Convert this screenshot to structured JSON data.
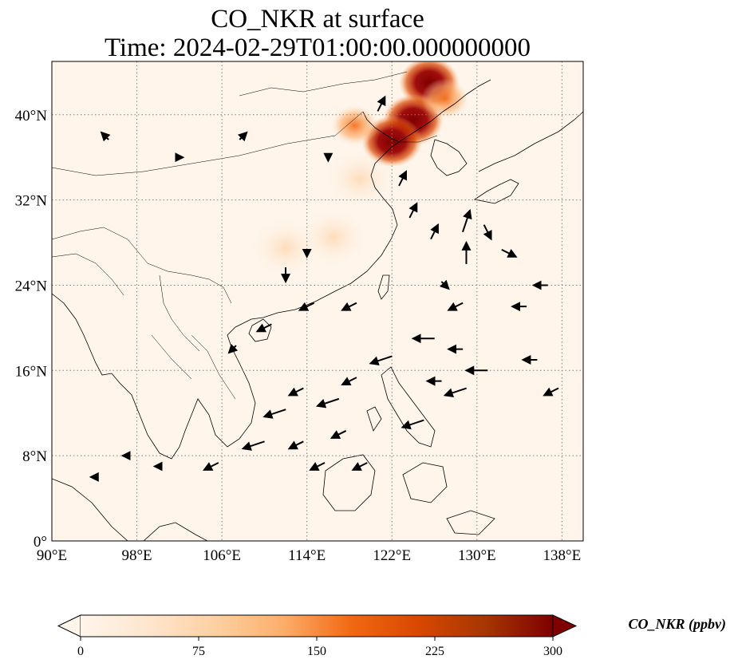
{
  "title": {
    "line1": "CO_NKR at surface",
    "line2": "Time: 2024-02-29T01:00:00.000000000"
  },
  "map": {
    "lon_range": [
      90,
      140
    ],
    "lat_range": [
      0,
      45
    ],
    "x_ticks": [
      {
        "value": 90,
        "label": "90°E"
      },
      {
        "value": 98,
        "label": "98°E"
      },
      {
        "value": 106,
        "label": "106°E"
      },
      {
        "value": 114,
        "label": "114°E"
      },
      {
        "value": 122,
        "label": "122°E"
      },
      {
        "value": 130,
        "label": "130°E"
      },
      {
        "value": 138,
        "label": "138°E"
      }
    ],
    "y_ticks": [
      {
        "value": 0,
        "label": "0°"
      },
      {
        "value": 8,
        "label": "8°N"
      },
      {
        "value": 16,
        "label": "16°N"
      },
      {
        "value": 24,
        "label": "24°N"
      },
      {
        "value": 32,
        "label": "32°N"
      },
      {
        "value": 40,
        "label": "40°N"
      }
    ],
    "gridlines": true,
    "background_color": "#fff5eb",
    "coastline_color": "#000000"
  },
  "colorbar": {
    "label": "CO_NKR (ppbv)",
    "min": 0,
    "max": 300,
    "extend": "both",
    "ticks": [
      "0",
      "75",
      "150",
      "225",
      "300"
    ],
    "colormap": "OrRd",
    "stops": [
      "#fff5eb",
      "#fee6ce",
      "#fdd0a2",
      "#fdae6b",
      "#f16913",
      "#d94801",
      "#a63603",
      "#7f0000"
    ]
  },
  "chart_data": {
    "type": "heatmap",
    "variable": "CO_NKR",
    "units": "ppbv",
    "hotspots": [
      {
        "lon": 125.5,
        "lat": 43.0,
        "value": 300
      },
      {
        "lon": 124.0,
        "lat": 39.5,
        "value": 290
      },
      {
        "lon": 122.0,
        "lat": 37.5,
        "value": 250
      },
      {
        "lon": 127.0,
        "lat": 41.5,
        "value": 180
      },
      {
        "lon": 118.5,
        "lat": 39.0,
        "value": 90
      },
      {
        "lon": 119.0,
        "lat": 34.0,
        "value": 45
      },
      {
        "lon": 116.5,
        "lat": 28.5,
        "value": 55
      },
      {
        "lon": 112.0,
        "lat": 27.5,
        "value": 30
      }
    ],
    "wind_vectors": [
      {
        "lon": 123,
        "lat": 34,
        "u": 1,
        "v": 2
      },
      {
        "lon": 124,
        "lat": 31,
        "u": 1,
        "v": 2
      },
      {
        "lon": 126,
        "lat": 29,
        "u": 1,
        "v": 2
      },
      {
        "lon": 129,
        "lat": 27,
        "u": 0,
        "v": 3
      },
      {
        "lon": 129,
        "lat": 30,
        "u": 1,
        "v": 3
      },
      {
        "lon": 131,
        "lat": 29,
        "u": 1,
        "v": -2
      },
      {
        "lon": 133,
        "lat": 27,
        "u": 2,
        "v": -1
      },
      {
        "lon": 127,
        "lat": 24,
        "u": 1,
        "v": -1
      },
      {
        "lon": 128,
        "lat": 22,
        "u": -2,
        "v": -1
      },
      {
        "lon": 125,
        "lat": 19,
        "u": -3,
        "v": 0
      },
      {
        "lon": 128,
        "lat": 18,
        "u": -2,
        "v": 0
      },
      {
        "lon": 130,
        "lat": 16,
        "u": -3,
        "v": 0
      },
      {
        "lon": 126,
        "lat": 15,
        "u": -2,
        "v": 0
      },
      {
        "lon": 128,
        "lat": 14,
        "u": -3,
        "v": -1
      },
      {
        "lon": 124,
        "lat": 11,
        "u": -3,
        "v": -1
      },
      {
        "lon": 121,
        "lat": 17,
        "u": -3,
        "v": -1
      },
      {
        "lon": 118,
        "lat": 15,
        "u": -2,
        "v": -1
      },
      {
        "lon": 116,
        "lat": 13,
        "u": -3,
        "v": -1
      },
      {
        "lon": 113,
        "lat": 14,
        "u": -2,
        "v": -1
      },
      {
        "lon": 111,
        "lat": 12,
        "u": -3,
        "v": -1
      },
      {
        "lon": 109,
        "lat": 9,
        "u": -3,
        "v": -1
      },
      {
        "lon": 113,
        "lat": 9,
        "u": -2,
        "v": -1
      },
      {
        "lon": 117,
        "lat": 10,
        "u": -2,
        "v": -1
      },
      {
        "lon": 119,
        "lat": 7,
        "u": -2,
        "v": -1
      },
      {
        "lon": 115,
        "lat": 7,
        "u": -2,
        "v": -1
      },
      {
        "lon": 105,
        "lat": 7,
        "u": -2,
        "v": -1
      },
      {
        "lon": 100,
        "lat": 7,
        "u": -1,
        "v": 0
      },
      {
        "lon": 97,
        "lat": 8,
        "u": -1,
        "v": 0
      },
      {
        "lon": 94,
        "lat": 6,
        "u": -1,
        "v": 0
      },
      {
        "lon": 114,
        "lat": 22,
        "u": -2,
        "v": -1
      },
      {
        "lon": 118,
        "lat": 22,
        "u": -2,
        "v": -1
      },
      {
        "lon": 110,
        "lat": 20,
        "u": -2,
        "v": -1
      },
      {
        "lon": 107,
        "lat": 18,
        "u": -1,
        "v": -1
      },
      {
        "lon": 112,
        "lat": 25,
        "u": 0,
        "v": -2
      },
      {
        "lon": 114,
        "lat": 27,
        "u": 0,
        "v": -1
      },
      {
        "lon": 121,
        "lat": 41,
        "u": 1,
        "v": 2
      },
      {
        "lon": 116,
        "lat": 36,
        "u": 0,
        "v": -1
      },
      {
        "lon": 108,
        "lat": 38,
        "u": 1,
        "v": 1
      },
      {
        "lon": 102,
        "lat": 36,
        "u": 1,
        "v": 0
      },
      {
        "lon": 95,
        "lat": 38,
        "u": -1,
        "v": 1
      },
      {
        "lon": 134,
        "lat": 22,
        "u": -2,
        "v": 0
      },
      {
        "lon": 136,
        "lat": 24,
        "u": -2,
        "v": 0
      },
      {
        "lon": 137,
        "lat": 14,
        "u": -2,
        "v": -1
      },
      {
        "lon": 135,
        "lat": 17,
        "u": -2,
        "v": 0
      }
    ]
  }
}
